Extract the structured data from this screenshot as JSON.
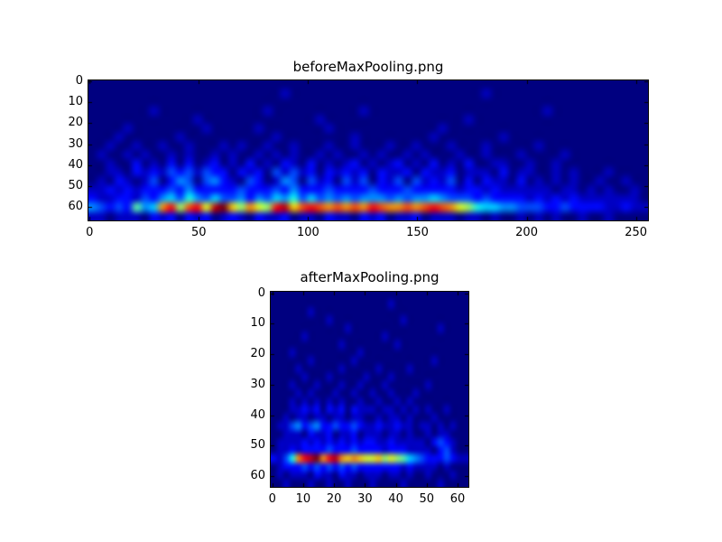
{
  "figure": {
    "background_color": "#ffffff",
    "axes_border_color": "#000000",
    "tick_color": "#000000",
    "label_color": "#000000"
  },
  "chart_data": [
    {
      "type": "heatmap",
      "title": "beforeMaxPooling.png",
      "colormap": "jet",
      "colormap_min_color": "#000080",
      "colormap_max_color": "#800000",
      "xlabel": "",
      "ylabel": "",
      "xlim": [
        -0.5,
        255.5
      ],
      "ylim": [
        66.5,
        -0.5
      ],
      "x_tick_values": [
        0,
        50,
        100,
        150,
        200,
        250
      ],
      "x_tick_labels": [
        "0",
        "50",
        "100",
        "150",
        "200",
        "250"
      ],
      "y_tick_values": [
        0,
        10,
        20,
        30,
        40,
        50,
        60
      ],
      "y_tick_labels": [
        "0",
        "10",
        "20",
        "30",
        "40",
        "50",
        "60"
      ],
      "grid_cols": 64,
      "grid_rows": 16,
      "intensity_encoding": "hex digit 0-f per cell; 0 = minimum (dark navy), f = maximum (dark red); rows listed top to bottom; spectrogram energy concentrated in a bright horizontal band near y=55-60 spanning x=0-175, fading toward x=250",
      "intensity_rows": [
        "0000000000000000000000000000000000000000000000000000000000000000",
        "0000000000000000000000100000000000000000000001000000000000000000",
        "0000000000000000000000000000000000000000000000000000000000000000",
        "0000000100000000000010000000000100000000000000000000100000000000",
        "0000000000001000000000000010000000000000000100000000000000000000",
        "0000100000000100000100000001000000000000100000000000000000000000",
        "0001000000100000000001000000001000000001000000010000000000000000",
        "0010010010010001010010010001001000100100010001000001000000000000",
        "0100101001010010100101010010100101001010001001000100001000000000",
        "0010020102020120102010210201012010120102010200110010010000000000",
        "0011021213231322021203131202121202112021120111020110010100010000",
        "0102101302430342103201430312031302130312130202110201010100100100",
        "1121212223242222232223242223222232223222221221211111101101010010",
        "2112213245364353342435463534343444343445433323222212121211111110",
        "43232745bd8cd9efa8b98deacdcbcbcbdcbbcbcdcb9865544333223222211211",
        "1101110212021201210211201102110212011201110110100101010010010000"
      ]
    },
    {
      "type": "heatmap",
      "title": "afterMaxPooling.png",
      "colormap": "jet",
      "colormap_min_color": "#000080",
      "colormap_max_color": "#800000",
      "xlabel": "",
      "ylabel": "",
      "xlim": [
        -0.5,
        63.5
      ],
      "ylim": [
        63.5,
        -0.5
      ],
      "x_tick_values": [
        0,
        10,
        20,
        30,
        40,
        50,
        60
      ],
      "x_tick_labels": [
        "0",
        "10",
        "20",
        "30",
        "40",
        "50",
        "60"
      ],
      "y_tick_values": [
        0,
        10,
        20,
        30,
        40,
        50,
        60
      ],
      "y_tick_labels": [
        "0",
        "10",
        "20",
        "30",
        "40",
        "50",
        "60"
      ],
      "grid_cols": 32,
      "grid_rows": 24,
      "intensity_encoding": "hex digit 0-f per cell; 0 = minimum (dark navy), f = maximum (dark red); rows listed top to bottom; bright band near y=54-57 spanning x=4-45 with red peaks around x=10-22",
      "intensity_rows": [
        "00000000000000000000000000000000",
        "00000000000000000001000000000000",
        "00000010000000000000000000000000",
        "00000000010000000000010000000000",
        "00000000000010000000000000010000",
        "00000100000000000010000000000000",
        "00000000000100000000100000000000",
        "00010000000000100000000000000000",
        "00000010000001000000000000100000",
        "00001000000100000100001000000000",
        "00000100010000010001000000000000",
        "00010001000100100010000001000000",
        "00001010001001001001000100000000",
        "00010101010100100100101000000000",
        "00011212021202111011010101001000",
        "00101101101101100101101000100000",
        "01134234223223211211211011010100",
        "00111021120112011101101001011000",
        "01111212121212122112111110232100",
        "01121222232223222212221111023100",
        "2136bdefbdebaba99a89875432223211",
        "01222323232323222222212111101000",
        "01011102110211011101101001000100",
        "00100010010010001000010000010000"
      ]
    }
  ]
}
